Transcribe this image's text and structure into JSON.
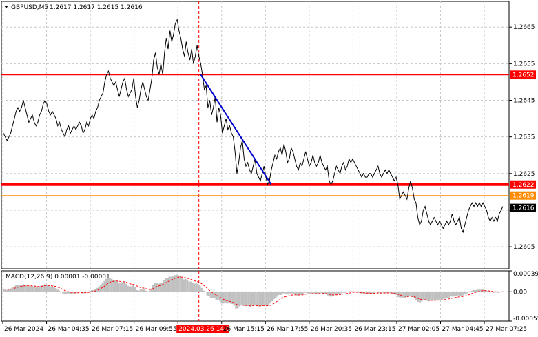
{
  "header": {
    "symbol": "GBPUSD,M5",
    "ohlc": "1.2617 1.2617 1.2615 1.2616"
  },
  "macd_label": "MACD(12,26,9) 0.00001 -0.00001",
  "colors": {
    "price_line": "#000000",
    "resistance": "#ff0000",
    "trend_line": "#0000cc",
    "orange_line": "#ff8c00",
    "histogram": "#c0c0c0",
    "signal": "#ff0000",
    "grid": "#c8c8c8",
    "highlight_label_bg": "#ff0000",
    "current_label_bg": "#000000"
  },
  "chart_data": [
    {
      "type": "line",
      "yscale": "linear",
      "ylim": [
        1.2599,
        1.2672
      ],
      "yticks": [
        "1.2665",
        "1.2655",
        "1.2645",
        "1.2635",
        "1.2625",
        "1.2615",
        "1.2605"
      ],
      "x_tick_labels": [
        "26 Mar 2024",
        "26 Mar 04:35",
        "26 Mar 07:15",
        "26 Mar 09:55",
        "2024.03.26 14:00",
        "26 Mar 15:15",
        "26 Mar 17:55",
        "26 Mar 20:35",
        "26 Mar 23:15",
        "27 Mar 02:05",
        "27 Mar 04:45",
        "27 Mar 07:25"
      ],
      "highlighted_x_label": "2024.03.26 14:00",
      "x_count": 271,
      "horizontal_levels": [
        {
          "value": 1.2652,
          "label": "1.2652",
          "color": "#ff0000",
          "style": "solid",
          "width": 2
        },
        {
          "value": 1.2622,
          "label": "1.2622",
          "color": "#ff0000",
          "style": "solid",
          "width": 4
        },
        {
          "value": 1.2619,
          "label": "1.2619",
          "color": "#ff8c00",
          "style": "solid",
          "width": 1
        }
      ],
      "current_price": "1.2616",
      "trend_line": {
        "from": [
          109,
          1.2652
        ],
        "to": [
          148,
          1.2622
        ]
      },
      "vertical_markers": [
        {
          "x": 108,
          "color": "#ff0000",
          "style": "dashed"
        },
        {
          "x": 197,
          "color": "#000000",
          "style": "dashed"
        }
      ],
      "series": [
        {
          "values": [
            1.2636,
            1.2635,
            1.2634,
            1.2635,
            1.2636,
            1.2638,
            1.264,
            1.2642,
            1.2643,
            1.2642,
            1.2643,
            1.2645,
            1.2643,
            1.2641,
            1.2639,
            1.264,
            1.2641,
            1.2639,
            1.2638,
            1.2639,
            1.2641,
            1.2642,
            1.2644,
            1.2645,
            1.2644,
            1.2642,
            1.2641,
            1.2642,
            1.2641,
            1.264,
            1.2638,
            1.2639,
            1.2637,
            1.2636,
            1.2635,
            1.2637,
            1.2638,
            1.2636,
            1.2637,
            1.2638,
            1.2637,
            1.2638,
            1.2639,
            1.2638,
            1.2636,
            1.2637,
            1.2639,
            1.2638,
            1.264,
            1.2641,
            1.264,
            1.2642,
            1.2643,
            1.2645,
            1.2646,
            1.2647,
            1.265,
            1.2652,
            1.2653,
            1.2651,
            1.265,
            1.2649,
            1.265,
            1.2648,
            1.2646,
            1.2648,
            1.265,
            1.2651,
            1.2648,
            1.2646,
            1.2647,
            1.2648,
            1.2651,
            1.2646,
            1.2643,
            1.2645,
            1.2648,
            1.265,
            1.2648,
            1.2646,
            1.2645,
            1.2648,
            1.2651,
            1.2656,
            1.2658,
            1.2654,
            1.2652,
            1.2655,
            1.2652,
            1.2658,
            1.2662,
            1.2659,
            1.2664,
            1.2661,
            1.2663,
            1.2666,
            1.2667,
            1.2664,
            1.2662,
            1.2659,
            1.2657,
            1.2661,
            1.2658,
            1.2656,
            1.2659,
            1.2655,
            1.2657,
            1.266,
            1.2657,
            1.2655,
            1.2652,
            1.2648,
            1.2649,
            1.2643,
            1.2645,
            1.2641,
            1.2643,
            1.2646,
            1.2639,
            1.2643,
            1.2641,
            1.2636,
            1.2638,
            1.264,
            1.2637,
            1.2638,
            1.2636,
            1.2635,
            1.2631,
            1.2625,
            1.2628,
            1.2632,
            1.2634,
            1.2629,
            1.2627,
            1.2628,
            1.2626,
            1.2625,
            1.2627,
            1.2629,
            1.2625,
            1.2624,
            1.2623,
            1.2625,
            1.2627,
            1.2624,
            1.2622,
            1.2623,
            1.2626,
            1.2628,
            1.263,
            1.2629,
            1.2631,
            1.2632,
            1.263,
            1.2633,
            1.2631,
            1.2628,
            1.2629,
            1.2632,
            1.2631,
            1.2629,
            1.2627,
            1.2626,
            1.2628,
            1.2627,
            1.2629,
            1.2631,
            1.2629,
            1.2627,
            1.2628,
            1.263,
            1.2628,
            1.2627,
            1.2628,
            1.263,
            1.2628,
            1.2627,
            1.2626,
            1.2627,
            1.2623,
            1.2622,
            1.2623,
            1.2625,
            1.2627,
            1.2626,
            1.2625,
            1.2627,
            1.2628,
            1.2626,
            1.2627,
            1.2629,
            1.2628,
            1.2629,
            1.2628,
            1.2627,
            1.2626,
            1.2625,
            1.2624,
            1.2625,
            1.2624,
            1.2624,
            1.2625,
            1.2625,
            1.2624,
            1.2625,
            1.2626,
            1.2627,
            1.2625,
            1.2624,
            1.2625,
            1.2626,
            1.2625,
            1.2626,
            1.2625,
            1.2624,
            1.2623,
            1.2624,
            1.2622,
            1.2618,
            1.2619,
            1.262,
            1.2619,
            1.2618,
            1.2621,
            1.2623,
            1.2621,
            1.2618,
            1.2617,
            1.2613,
            1.2611,
            1.2612,
            1.2615,
            1.2616,
            1.2614,
            1.2612,
            1.2611,
            1.2612,
            1.2613,
            1.2612,
            1.2611,
            1.2612,
            1.2611,
            1.261,
            1.2611,
            1.2612,
            1.2611,
            1.2612,
            1.2614,
            1.2612,
            1.2611,
            1.2612,
            1.2613,
            1.261,
            1.2609,
            1.2611,
            1.2613,
            1.2615,
            1.2616,
            1.2617,
            1.2616,
            1.2617,
            1.2616,
            1.2617,
            1.2616,
            1.2617,
            1.2616,
            1.2615,
            1.2613,
            1.2612,
            1.2613,
            1.2612,
            1.2613,
            1.2612,
            1.2614,
            1.2615,
            1.2616
          ]
        }
      ]
    },
    {
      "type": "bar",
      "subtype": "histogram_with_signal",
      "title": "MACD(12,26,9) 0.00001 -0.00001",
      "ylim": [
        -0.00055,
        0.00039
      ],
      "yticks": [
        "0.00039",
        "0.00",
        "-0.00055"
      ],
      "x_count": 271,
      "series": [
        {
          "name": "MACD",
          "values": [
            5e-05,
            4e-05,
            3e-05,
            4e-05,
            6e-05,
            8e-05,
            0.0001,
            0.00012,
            0.00013,
            0.00012,
            0.00013,
            0.00014,
            0.00013,
            0.00012,
            0.0001,
            0.0001,
            0.00011,
            0.0001,
            8e-05,
            8e-05,
            0.0001,
            0.00011,
            0.00013,
            0.00014,
            0.00013,
            0.00011,
            0.0001,
            0.0001,
            9e-05,
            7e-05,
            4e-05,
            2e-05,
            0,
            -3e-05,
            -5e-05,
            -4e-05,
            -3e-05,
            -5e-05,
            -4e-05,
            -3e-05,
            -3e-05,
            -2e-05,
            -1e-05,
            -1e-05,
            -3e-05,
            -2e-05,
            0,
            0,
            2e-05,
            3e-05,
            3e-05,
            5e-05,
            7e-05,
            0.0001,
            0.00013,
            0.00016,
            0.0002,
            0.00024,
            0.00026,
            0.00025,
            0.00024,
            0.00022,
            0.00022,
            0.0002,
            0.00017,
            0.00017,
            0.00018,
            0.00018,
            0.00015,
            0.00011,
            0.0001,
            0.0001,
            0.00012,
            8e-05,
            3e-05,
            2e-05,
            4e-05,
            5e-05,
            4e-05,
            2e-05,
            0,
            2e-05,
            6e-05,
            0.00012,
            0.00016,
            0.00016,
            0.00015,
            0.00017,
            0.00017,
            0.00021,
            0.00025,
            0.00025,
            0.00028,
            0.00028,
            0.00029,
            0.00031,
            0.00032,
            0.00031,
            0.00029,
            0.00026,
            0.00023,
            0.00024,
            0.00022,
            0.00019,
            0.00019,
            0.00016,
            0.00015,
            0.00016,
            0.00014,
            0.00011,
            7e-05,
            2e-05,
            -1e-05,
            -7e-05,
            -8e-05,
            -0.00012,
            -0.00012,
            -0.00011,
            -0.00016,
            -0.00016,
            -0.00017,
            -0.00022,
            -0.00022,
            -0.00021,
            -0.00022,
            -0.00021,
            -0.00022,
            -0.00023,
            -0.00026,
            -0.00032,
            -0.00031,
            -0.00027,
            -0.00024,
            -0.00026,
            -0.00027,
            -0.00026,
            -0.00027,
            -0.00028,
            -0.00026,
            -0.00024,
            -0.00026,
            -0.00027,
            -0.00028,
            -0.00026,
            -0.00024,
            -0.00025,
            -0.00027,
            -0.00026,
            -0.00022,
            -0.00018,
            -0.00014,
            -0.00012,
            -9e-05,
            -6e-05,
            -6e-05,
            -3e-05,
            -3e-05,
            -5e-05,
            -5e-05,
            -3e-05,
            -3e-05,
            -4e-05,
            -6e-05,
            -7e-05,
            -6e-05,
            -6e-05,
            -4e-05,
            -2e-05,
            -2e-05,
            -3e-05,
            -3e-05,
            -2e-05,
            -3e-05,
            -4e-05,
            -4e-05,
            -2e-05,
            -2e-05,
            -3e-05,
            -4e-05,
            -4e-05,
            -7e-05,
            -9e-05,
            -9e-05,
            -7e-05,
            -5e-05,
            -5e-05,
            -5e-05,
            -3e-05,
            -2e-05,
            -2e-05,
            -2e-05,
            0,
            0,
            1e-05,
            1e-05,
            0,
            -1e-05,
            -2e-05,
            -3e-05,
            -3e-05,
            -3e-05,
            -4e-05,
            -3e-05,
            -3e-05,
            -4e-05,
            -3e-05,
            -2e-05,
            -1e-05,
            -2e-05,
            -3e-05,
            -2e-05,
            -2e-05,
            -2e-05,
            -2e-05,
            -2e-05,
            -3e-05,
            -4e-05,
            -4e-05,
            -6e-05,
            -0.0001,
            -0.00011,
            -0.00011,
            -0.00011,
            -0.00012,
            -0.0001,
            -8e-05,
            -8e-05,
            -0.0001,
            -0.00012,
            -0.00016,
            -0.00019,
            -0.0002,
            -0.00018,
            -0.00016,
            -0.00016,
            -0.00017,
            -0.00018,
            -0.00017,
            -0.00016,
            -0.00016,
            -0.00016,
            -0.00015,
            -0.00015,
            -0.00015,
            -0.00014,
            -0.00013,
            -0.00012,
            -0.00011,
            -9e-05,
            -9e-05,
            -9e-05,
            -8e-05,
            -7e-05,
            -8e-05,
            -8e-05,
            -7e-05,
            -5e-05,
            -3e-05,
            -1e-05,
            1e-05,
            2e-05,
            3e-05,
            3e-05,
            4e-05,
            4e-05,
            4e-05,
            4e-05,
            3e-05,
            2e-05,
            0,
            -1e-05,
            -1e-05,
            -2e-05,
            -1e-05,
            -2e-05,
            -1e-05,
            0,
            1e-05
          ]
        },
        {
          "name": "Signal",
          "values": []
        }
      ]
    }
  ]
}
